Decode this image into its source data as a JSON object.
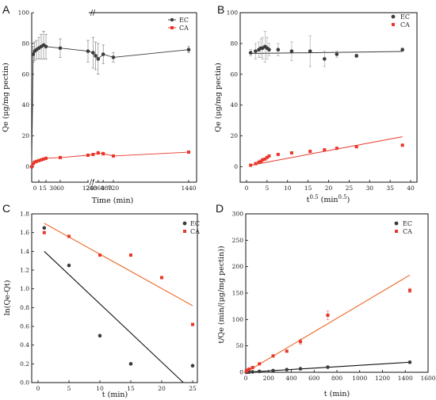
{
  "colors": {
    "EC": "#3c3c3c",
    "CA": "#e8372a",
    "fitCA_D": "#ee6a2c"
  },
  "chart_data": [
    {
      "panel": "A",
      "type": "line",
      "xlabel": "Time (min)",
      "ylabel": "Qe (μg/mg pectin)",
      "ylim": [
        -10,
        100
      ],
      "yticks": [
        "0",
        "20",
        "40",
        "60",
        "80",
        "100"
      ],
      "xticks": [
        "0",
        "15",
        "30",
        "60",
        "120",
        "240",
        "360",
        "480",
        "720",
        "1440"
      ],
      "x_axis_break": [
        60,
        120
      ],
      "legend": "top-right",
      "series": [
        {
          "name": "EC",
          "x": [
            0,
            3,
            6,
            10,
            15,
            20,
            25,
            30,
            60,
            120,
            240,
            300,
            360,
            480,
            720,
            1440
          ],
          "y": [
            0,
            73,
            75,
            76,
            77,
            78,
            79,
            78,
            77,
            75,
            74,
            72,
            70,
            73,
            71,
            76
          ],
          "err": [
            0,
            5,
            6,
            6,
            7,
            8,
            9,
            8,
            6,
            7,
            10,
            9,
            10,
            6,
            3,
            2
          ]
        },
        {
          "name": "CA",
          "x": [
            0,
            3,
            6,
            10,
            15,
            20,
            25,
            30,
            60,
            120,
            240,
            360,
            480,
            720,
            1440
          ],
          "y": [
            0,
            2,
            3,
            3.5,
            4,
            4.5,
            5,
            5.5,
            6,
            7.5,
            8,
            9,
            8.5,
            7,
            9.5
          ],
          "err": [
            0,
            0.5,
            0.5,
            0.5,
            0.5,
            0.5,
            0.5,
            0.6,
            0.6,
            0.8,
            0.8,
            1,
            1,
            0.8,
            0.8
          ]
        }
      ]
    },
    {
      "panel": "B",
      "type": "scatter",
      "xlabel": "t0.5 (min0.5)",
      "ylabel": "Qe (μg/mg pectin)",
      "xlim": [
        0,
        40
      ],
      "ylim": [
        -10,
        100
      ],
      "xticks": [
        "0",
        "5",
        "10",
        "15",
        "20",
        "25",
        "30",
        "35",
        "40"
      ],
      "yticks": [
        "0",
        "20",
        "40",
        "60",
        "80",
        "100"
      ],
      "legend": "top-right",
      "series": [
        {
          "name": "EC",
          "x": [
            1,
            2.2,
            3,
            3.5,
            3.9,
            4.5,
            5,
            5.5,
            7.7,
            11,
            15.5,
            19,
            22,
            26.8,
            38
          ],
          "y": [
            74,
            75,
            76,
            77,
            77,
            78,
            77,
            76,
            76,
            75,
            75,
            70,
            73,
            72,
            76
          ],
          "err": [
            2,
            5,
            5,
            6,
            7,
            10,
            7,
            4,
            4,
            6,
            10,
            5,
            2,
            1,
            1
          ]
        },
        {
          "name": "CA",
          "x": [
            1,
            2.2,
            3,
            3.5,
            3.9,
            4.5,
            5,
            5.5,
            7.7,
            11,
            15.5,
            19,
            22,
            26.8,
            38
          ],
          "y": [
            1,
            2,
            3,
            3.5,
            4.5,
            5,
            6,
            7,
            8,
            9,
            10,
            11,
            12,
            13,
            14
          ],
          "err": [
            0,
            0,
            0,
            0,
            0,
            0,
            0,
            0,
            0,
            0,
            0,
            0,
            0,
            0,
            0
          ]
        }
      ],
      "fits": [
        {
          "name": "EC",
          "x": [
            1,
            38
          ],
          "y": [
            73.5,
            74.8
          ]
        },
        {
          "name": "CA",
          "x": [
            1,
            38
          ],
          "y": [
            1,
            19.5
          ]
        }
      ]
    },
    {
      "panel": "C",
      "type": "scatter",
      "xlabel": "t (min)",
      "ylabel": "ln(Qe-Qt)",
      "xlim": [
        0,
        25
      ],
      "ylim": [
        0,
        1.8
      ],
      "xticks": [
        "0",
        "5",
        "10",
        "15",
        "20",
        "25"
      ],
      "yticks": [
        "0.0",
        "0.2",
        "0.4",
        "0.6",
        "0.8",
        "1.0",
        "1.2",
        "1.4",
        "1.6",
        "1.8"
      ],
      "legend": "top-right",
      "series": [
        {
          "name": "EC",
          "x": [
            1,
            5,
            10,
            15,
            25
          ],
          "y": [
            1.65,
            1.25,
            0.5,
            0.2,
            0.18
          ]
        },
        {
          "name": "CA",
          "x": [
            1,
            5,
            10,
            15,
            20,
            25
          ],
          "y": [
            1.6,
            1.56,
            1.36,
            1.36,
            1.12,
            0.62
          ]
        }
      ],
      "fits": [
        {
          "name": "EC",
          "x": [
            1,
            23.5
          ],
          "y": [
            1.4,
            0
          ]
        },
        {
          "name": "CA",
          "x": [
            1,
            25
          ],
          "y": [
            1.7,
            0.82
          ]
        }
      ]
    },
    {
      "panel": "D",
      "type": "scatter",
      "xlabel": "t (min)",
      "ylabel": "t/Qe (min/(μg/mg pectin))",
      "xlim": [
        0,
        1600
      ],
      "ylim": [
        0,
        300
      ],
      "xticks": [
        "0",
        "200",
        "400",
        "600",
        "800",
        "1000",
        "1200",
        "1400",
        "1600"
      ],
      "yticks": [
        "0",
        "50",
        "100",
        "150",
        "200",
        "250",
        "300"
      ],
      "legend": "top-right",
      "series": [
        {
          "name": "EC",
          "x": [
            5,
            15,
            30,
            60,
            120,
            240,
            360,
            480,
            720,
            1440
          ],
          "y": [
            0.1,
            0.2,
            0.4,
            0.8,
            1.6,
            3.2,
            5,
            6.6,
            9.7,
            19
          ],
          "err": [
            0,
            0,
            0,
            0,
            0,
            0,
            0,
            0,
            0,
            0
          ]
        },
        {
          "name": "CA",
          "x": [
            5,
            15,
            30,
            60,
            120,
            240,
            360,
            480,
            720,
            1440
          ],
          "y": [
            2,
            4,
            6,
            9,
            16,
            31,
            40,
            58,
            108,
            155
          ],
          "err": [
            0,
            0,
            0,
            0,
            0,
            0,
            0,
            5,
            8,
            4
          ]
        }
      ],
      "fits": [
        {
          "name": "EC",
          "x": [
            0,
            1440
          ],
          "y": [
            0,
            19
          ]
        },
        {
          "name": "CA",
          "x": [
            0,
            1440
          ],
          "y": [
            0,
            184
          ]
        }
      ]
    }
  ]
}
